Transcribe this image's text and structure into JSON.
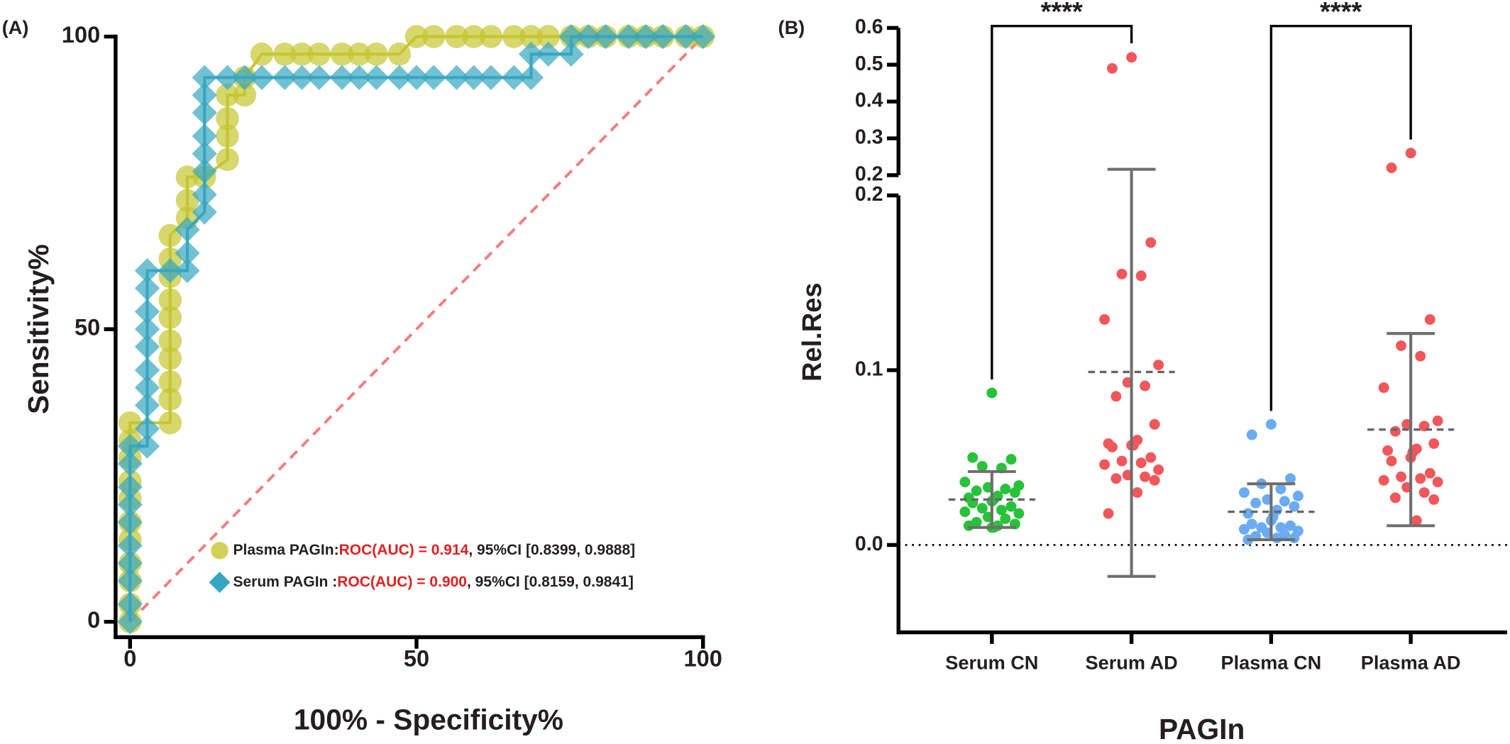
{
  "chart_data": [
    {
      "type": "roc",
      "panel_label": "(A)",
      "xlabel": "100% - Specificity%",
      "ylabel": "Sensitivity%",
      "xlim": [
        0,
        100
      ],
      "ylim": [
        0,
        100
      ],
      "xticks": [
        0,
        50,
        100
      ],
      "yticks": [
        0,
        50,
        100
      ],
      "series": [
        {
          "name": "Plasma  PAGIn:",
          "auc_label": "ROC(AUC) = 0.914",
          "ci_label": ", 95%CI [0.8399, 0.9888]",
          "color": "#c5c62f",
          "marker": "circle",
          "x": [
            0,
            0,
            0,
            0,
            0,
            0,
            0,
            0,
            0,
            0,
            0,
            7,
            7,
            7,
            7,
            7,
            7,
            7,
            7,
            7,
            7,
            10,
            10,
            10,
            13,
            17,
            17,
            17,
            17,
            20,
            20,
            23,
            27,
            30,
            33,
            37,
            40,
            43,
            47,
            50,
            53,
            57,
            60,
            63,
            67,
            70,
            73,
            77,
            80,
            83,
            87,
            90,
            93,
            97,
            100
          ],
          "values": [
            0,
            3,
            7,
            10,
            14,
            17,
            21,
            24,
            28,
            31,
            34,
            34,
            38,
            41,
            45,
            48,
            52,
            55,
            59,
            62,
            66,
            69,
            72,
            76,
            76,
            79,
            83,
            86,
            90,
            90,
            93,
            97,
            97,
            97,
            97,
            97,
            97,
            97,
            97,
            100,
            100,
            100,
            100,
            100,
            100,
            100,
            100,
            100,
            100,
            100,
            100,
            100,
            100,
            100,
            100
          ]
        },
        {
          "name": "Serum  PAGIn :",
          "auc_label": "ROC(AUC) = 0.900",
          "ci_label": ", 95%CI [0.8159, 0.9841]",
          "color": "#36a6c0",
          "marker": "diamond",
          "x": [
            0,
            0,
            0,
            0,
            0,
            0,
            0,
            0,
            0,
            0,
            3,
            3,
            3,
            3,
            3,
            3,
            3,
            3,
            3,
            3,
            7,
            10,
            10,
            10,
            13,
            13,
            13,
            13,
            13,
            13,
            13,
            13,
            17,
            20,
            23,
            27,
            30,
            33,
            37,
            40,
            43,
            47,
            50,
            53,
            57,
            60,
            63,
            67,
            70,
            70,
            73,
            77,
            77,
            80,
            83,
            87,
            90,
            93,
            97,
            100
          ],
          "values": [
            0,
            3,
            7,
            10,
            13,
            17,
            20,
            23,
            27,
            30,
            30,
            33,
            37,
            40,
            43,
            47,
            50,
            53,
            57,
            60,
            60,
            60,
            63,
            67,
            70,
            73,
            77,
            80,
            83,
            87,
            90,
            93,
            93,
            93,
            93,
            93,
            93,
            93,
            93,
            93,
            93,
            93,
            93,
            93,
            93,
            93,
            93,
            93,
            93,
            97,
            97,
            97,
            100,
            100,
            100,
            100,
            100,
            100,
            100,
            100
          ]
        }
      ]
    },
    {
      "type": "dot",
      "panel_label": "(B)",
      "xlabel": "PAGIn",
      "ylabel": "Rel.Res",
      "ylim": [
        -0.05,
        0.2
      ],
      "yticks": [
        {
          "value": 0,
          "label": "0.0"
        },
        0.1,
        0.2
      ],
      "ylim_upper": [
        0.2,
        0.6
      ],
      "yticks_upper": [
        0.2,
        0.3,
        0.4,
        0.5,
        0.6
      ],
      "categories": [
        "Serum CN",
        "Serum AD",
        "Plasma CN",
        "Plasma AD"
      ],
      "colors": [
        "#27c23a",
        "#f0575b",
        "#6aabf2",
        "#f0575b"
      ],
      "values": [
        [
          0.087,
          0.05,
          0.049,
          0.045,
          0.044,
          0.036,
          0.034,
          0.033,
          0.032,
          0.031,
          0.03,
          0.028,
          0.027,
          0.026,
          0.025,
          0.024,
          0.022,
          0.021,
          0.02,
          0.019,
          0.018,
          0.016,
          0.015,
          0.013,
          0.012,
          0.011,
          0.011,
          0.01,
          0.01
        ],
        [
          0.52,
          0.49,
          0.173,
          0.155,
          0.154,
          0.129,
          0.103,
          0.093,
          0.091,
          0.085,
          0.069,
          0.06,
          0.058,
          0.057,
          0.057,
          0.056,
          0.05,
          0.048,
          0.047,
          0.046,
          0.043,
          0.04,
          0.039,
          0.038,
          0.037,
          0.03,
          0.018
        ],
        [
          0.069,
          0.063,
          0.038,
          0.035,
          0.032,
          0.03,
          0.028,
          0.026,
          0.025,
          0.024,
          0.022,
          0.02,
          0.018,
          0.016,
          0.014,
          0.012,
          0.011,
          0.01,
          0.01,
          0.009,
          0.008,
          0.007,
          0.006,
          0.005,
          0.004,
          0.004,
          0.003
        ],
        [
          0.26,
          0.22,
          0.129,
          0.114,
          0.108,
          0.09,
          0.071,
          0.069,
          0.068,
          0.065,
          0.058,
          0.055,
          0.054,
          0.053,
          0.05,
          0.048,
          0.041,
          0.039,
          0.038,
          0.037,
          0.036,
          0.033,
          0.03,
          0.027,
          0.026,
          0.014
        ]
      ],
      "means": [
        0.026,
        0.099,
        0.019,
        0.066
      ],
      "sds": [
        0.016,
        0.117,
        0.016,
        0.055
      ],
      "annotations": [
        "****",
        "****"
      ]
    }
  ]
}
